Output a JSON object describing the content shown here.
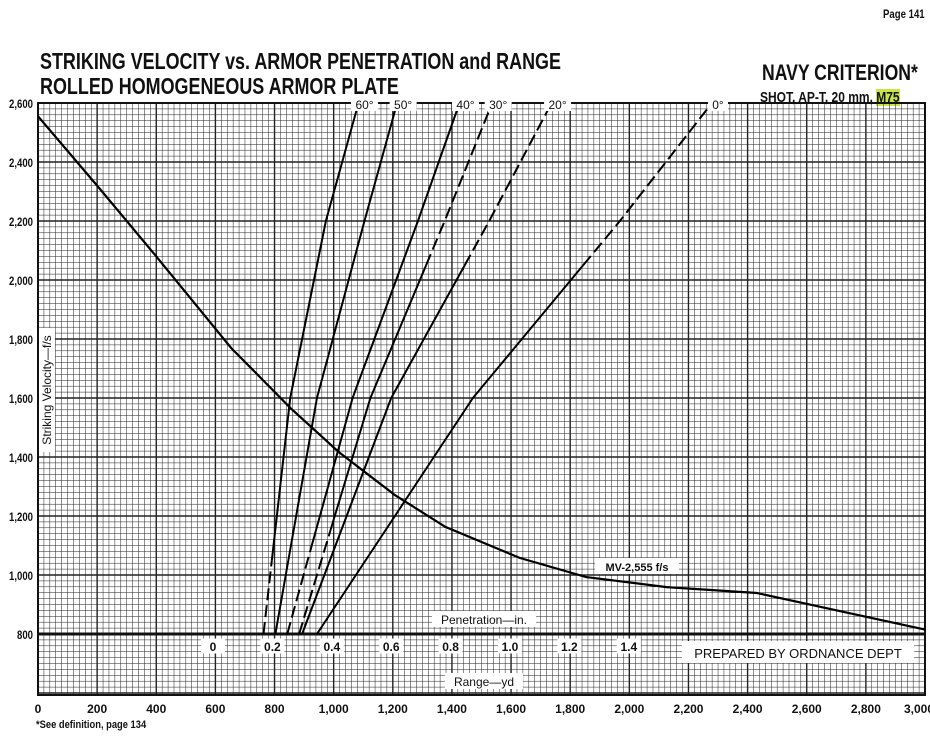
{
  "page": "Page 141",
  "title_line1": "STRIKING VELOCITY vs. ARMOR PENETRATION and RANGE",
  "title_line2": "ROLLED HOMOGENEOUS ARMOR PLATE",
  "criterion": "NAVY CRITERION*",
  "shot_prefix": "SHOT, AP-T, 20 mm, ",
  "shot_model": "M75",
  "footnote": "*See definition, page 134",
  "prepared": "PREPARED BY ORDNANCE DEPT",
  "chart_data": {
    "type": "line",
    "title": "STRIKING VELOCITY vs. ARMOR PENETRATION and RANGE",
    "ylabel": "Striking Velocity—f/s",
    "xlabel_range": "Range—yd",
    "xlabel_penetration": "Penetration—in.",
    "ylim": [
      800,
      2600
    ],
    "xlim_range": [
      0,
      3000
    ],
    "y_ticks": [
      "800",
      "1,000",
      "1,200",
      "1,400",
      "1,600",
      "1,800",
      "2,000",
      "2,200",
      "2,400",
      "2,600"
    ],
    "y_tick_values": [
      800,
      1000,
      1200,
      1400,
      1600,
      1800,
      2000,
      2200,
      2400,
      2600
    ],
    "range_ticks": [
      "0",
      "200",
      "400",
      "600",
      "800",
      "1,000",
      "1,200",
      "1,400",
      "1,600",
      "1,800",
      "2,000",
      "2,200",
      "2,400",
      "2,600",
      "2,800",
      "3,000"
    ],
    "range_tick_values": [
      0,
      200,
      400,
      600,
      800,
      1000,
      1200,
      1400,
      1600,
      1800,
      2000,
      2200,
      2400,
      2600,
      2800,
      3000
    ],
    "penetration_ticks": [
      "0",
      "0.2",
      "0.4",
      "0.6",
      "0.8",
      "1.0",
      "1.2",
      "1.4"
    ],
    "penetration_tick_values": [
      0,
      0.2,
      0.4,
      0.6,
      0.8,
      1.0,
      1.2,
      1.4
    ],
    "grid": true,
    "range_curve": {
      "label": "MV-2,555 f/s",
      "range": [
        0,
        200,
        400,
        653,
        854,
        1017,
        1207,
        1378,
        1629,
        1854,
        2126,
        2432,
        3000
      ],
      "velocity": [
        2555,
        2320,
        2080,
        1770,
        1566,
        1417,
        1271,
        1163,
        1058,
        993,
        959,
        939,
        815
      ]
    },
    "obliquity_series": [
      {
        "name": "60°",
        "velocity": [
          800,
          1600,
          2200,
          2600
        ],
        "penetration": [
          0.17,
          0.26,
          0.38,
          0.49
        ],
        "dashed_below": 1050
      },
      {
        "name": "50°",
        "velocity": [
          800,
          1600,
          2200,
          2600
        ],
        "penetration": [
          0.21,
          0.35,
          0.51,
          0.62
        ]
      },
      {
        "name": "40°",
        "velocity": [
          800,
          1600,
          2200,
          2600
        ],
        "penetration": [
          0.25,
          0.47,
          0.69,
          0.83
        ],
        "dashed_below": 1100
      },
      {
        "name": "30°",
        "velocity": [
          800,
          1600,
          2200,
          2600
        ],
        "penetration": [
          0.29,
          0.53,
          0.78,
          0.94
        ],
        "dashed_below": 1150,
        "dashed_above": 2050
      },
      {
        "name": "20°",
        "velocity": [
          800,
          1600,
          2200,
          2600
        ],
        "penetration": [
          0.3,
          0.6,
          0.93,
          1.14
        ],
        "dashed_above": 2050
      },
      {
        "name": "0°",
        "velocity": [
          800,
          1600,
          2200,
          2600
        ],
        "penetration": [
          0.35,
          0.875,
          1.37,
          1.68
        ],
        "dashed_above": 2050
      }
    ]
  }
}
